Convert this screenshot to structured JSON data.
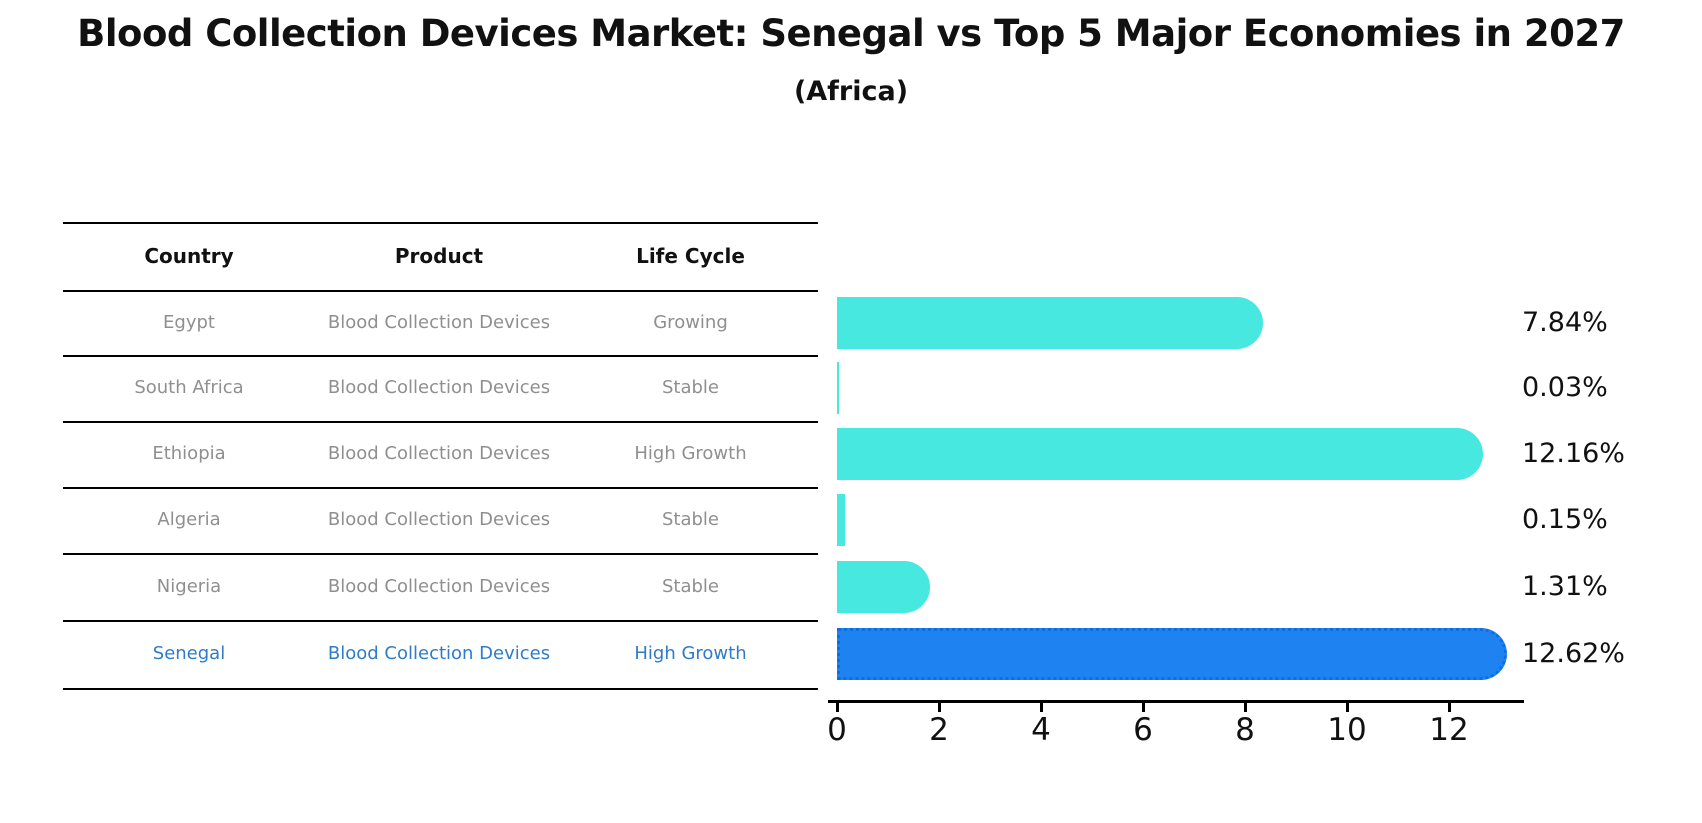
{
  "title": "Blood Collection Devices Market: Senegal vs Top 5 Major Economies in 2027",
  "subtitle": "(Africa)",
  "table": {
    "headers": {
      "country": "Country",
      "product": "Product",
      "life_cycle": "Life Cycle"
    },
    "rows": [
      {
        "country": "Egypt",
        "product": "Blood Collection Devices",
        "life_cycle": "Growing",
        "highlight": false
      },
      {
        "country": "South Africa",
        "product": "Blood Collection Devices",
        "life_cycle": "Stable",
        "highlight": false
      },
      {
        "country": "Ethiopia",
        "product": "Blood Collection Devices",
        "life_cycle": "High Growth",
        "highlight": false
      },
      {
        "country": "Algeria",
        "product": "Blood Collection Devices",
        "life_cycle": "Stable",
        "highlight": false
      },
      {
        "country": "Nigeria",
        "product": "Blood Collection Devices",
        "life_cycle": "Stable",
        "highlight": true
      },
      {
        "country": "Senegal",
        "product": "Blood Collection Devices",
        "life_cycle": "High Growth",
        "highlight": false
      }
    ]
  },
  "chart_data": {
    "type": "bar",
    "orientation": "horizontal",
    "title": "Blood Collection Devices Market: Senegal vs Top 5 Major Economies in 2027 (Africa)",
    "categories": [
      "Egypt",
      "South Africa",
      "Ethiopia",
      "Algeria",
      "Nigeria",
      "Senegal"
    ],
    "values": [
      7.84,
      0.03,
      12.16,
      0.15,
      1.31,
      12.62
    ],
    "value_labels": [
      "7.84%",
      "0.03%",
      "12.16%",
      "0.15%",
      "1.31%",
      "12.62%"
    ],
    "x_ticks": [
      "0",
      "2",
      "4",
      "6",
      "8",
      "10",
      "12"
    ],
    "xlim": [
      0,
      13.6
    ],
    "grid": false,
    "legend": "none",
    "bar_color": "#47e8e0",
    "highlight_color": "#1e82f0",
    "highlight_index": 5
  }
}
